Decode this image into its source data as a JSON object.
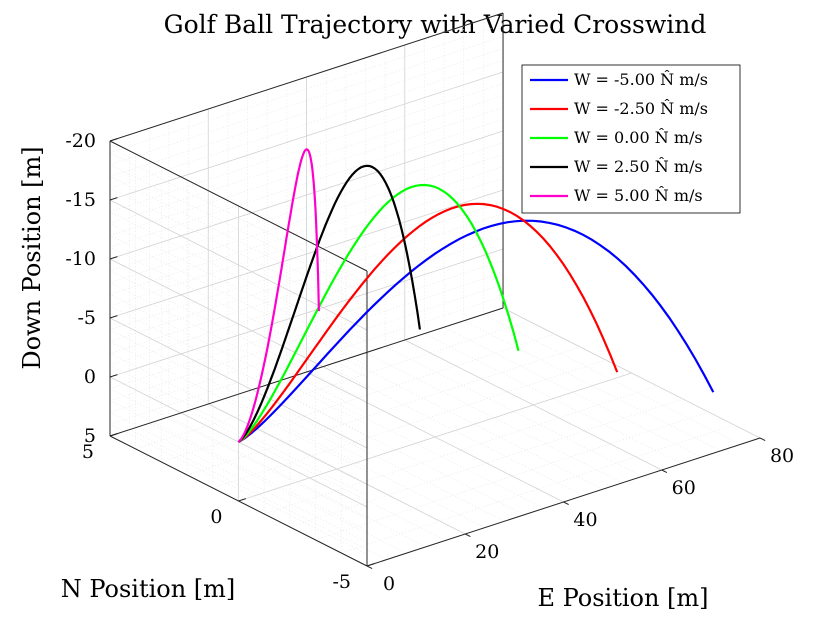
{
  "chart_data": {
    "type": "line",
    "title": "Golf Ball Trajectory with Varied Crosswind",
    "xlabel": "E Position [m]",
    "ylabel": "N Position [m]",
    "zlabel": "Down Position [m]",
    "xlim": [
      0,
      80
    ],
    "ylim": [
      -5,
      5
    ],
    "zlim": [
      -20,
      5
    ],
    "z_reversed": true,
    "grid": true,
    "grid_minor": true,
    "legend_position": "top-right",
    "xticks": [
      "0",
      "20",
      "40",
      "60",
      "80"
    ],
    "yticks": [
      "-5",
      "0",
      "5"
    ],
    "zticks": [
      "-20",
      "-15",
      "-10",
      "-5",
      "0",
      "5"
    ],
    "series": [
      {
        "name": "W = -5.00 N̂ m/s",
        "color": "#0000ff",
        "end_e": 71,
        "end_n": -4.9,
        "end_down": 0,
        "max_height": 16.8
      },
      {
        "name": "W = -2.50 N̂ m/s",
        "color": "#ff0000",
        "end_e": 64,
        "end_n": -2.5,
        "end_down": 0,
        "max_height": 17.5
      },
      {
        "name": "W = 0.00 N̂ m/s",
        "color": "#00ff00",
        "end_e": 57,
        "end_n": 0.0,
        "end_down": 0,
        "max_height": 18.3
      },
      {
        "name": "W = 2.50 N̂ m/s",
        "color": "#000000",
        "end_e": 50,
        "end_n": 2.5,
        "end_down": 0,
        "max_height": 19.1
      },
      {
        "name": "W = 5.00 N̂ m/s",
        "color": "#ff00cc",
        "end_e": 42,
        "end_n": 4.9,
        "end_down": 0,
        "max_height": 19.8
      }
    ]
  }
}
